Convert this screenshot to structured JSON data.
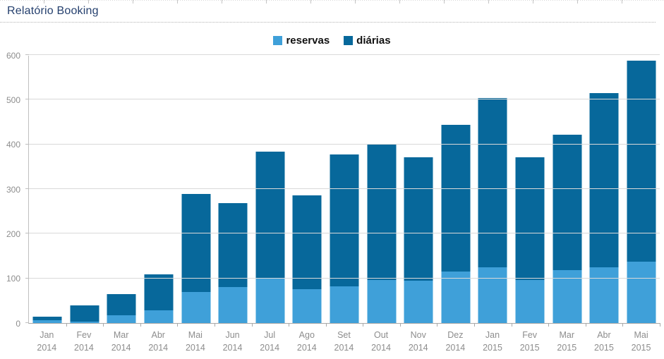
{
  "header": {
    "title": "Relatório Booking"
  },
  "chart_data": {
    "type": "bar",
    "stacked": true,
    "title": "Relatório Booking",
    "categories": [
      "Jan 2014",
      "Fev 2014",
      "Mar 2014",
      "Abr 2014",
      "Mai 2014",
      "Jun 2014",
      "Jul 2014",
      "Ago 2014",
      "Set 2014",
      "Out 2014",
      "Nov 2014",
      "Dez 2014",
      "Jan 2015",
      "Fev 2015",
      "Mar 2015",
      "Abr 2015",
      "Mai 2015"
    ],
    "series": [
      {
        "name": "reservas",
        "color": "#3FA0D9",
        "values": [
          6,
          3,
          17,
          28,
          69,
          80,
          101,
          76,
          82,
          97,
          94,
          115,
          124,
          97,
          119,
          125,
          137
        ]
      },
      {
        "name": "diárias",
        "color": "#07689B",
        "values": [
          8,
          37,
          48,
          81,
          220,
          188,
          282,
          210,
          295,
          303,
          277,
          328,
          379,
          274,
          302,
          389,
          450
        ]
      }
    ],
    "totals": [
      14,
      40,
      65,
      109,
      289,
      268,
      383,
      286,
      377,
      400,
      371,
      443,
      503,
      371,
      421,
      514,
      587
    ],
    "ylim": [
      0,
      600
    ],
    "yticks": [
      "0",
      "100",
      "200",
      "300",
      "400",
      "500",
      "600"
    ],
    "grid": "horizontal",
    "legend_position": "top-center",
    "xlabel": "",
    "ylabel": ""
  },
  "axis_colors": {
    "label_text": "#8d8d8d",
    "gridline": "#d9d9d9",
    "axis_line": "#bfbfbf"
  }
}
